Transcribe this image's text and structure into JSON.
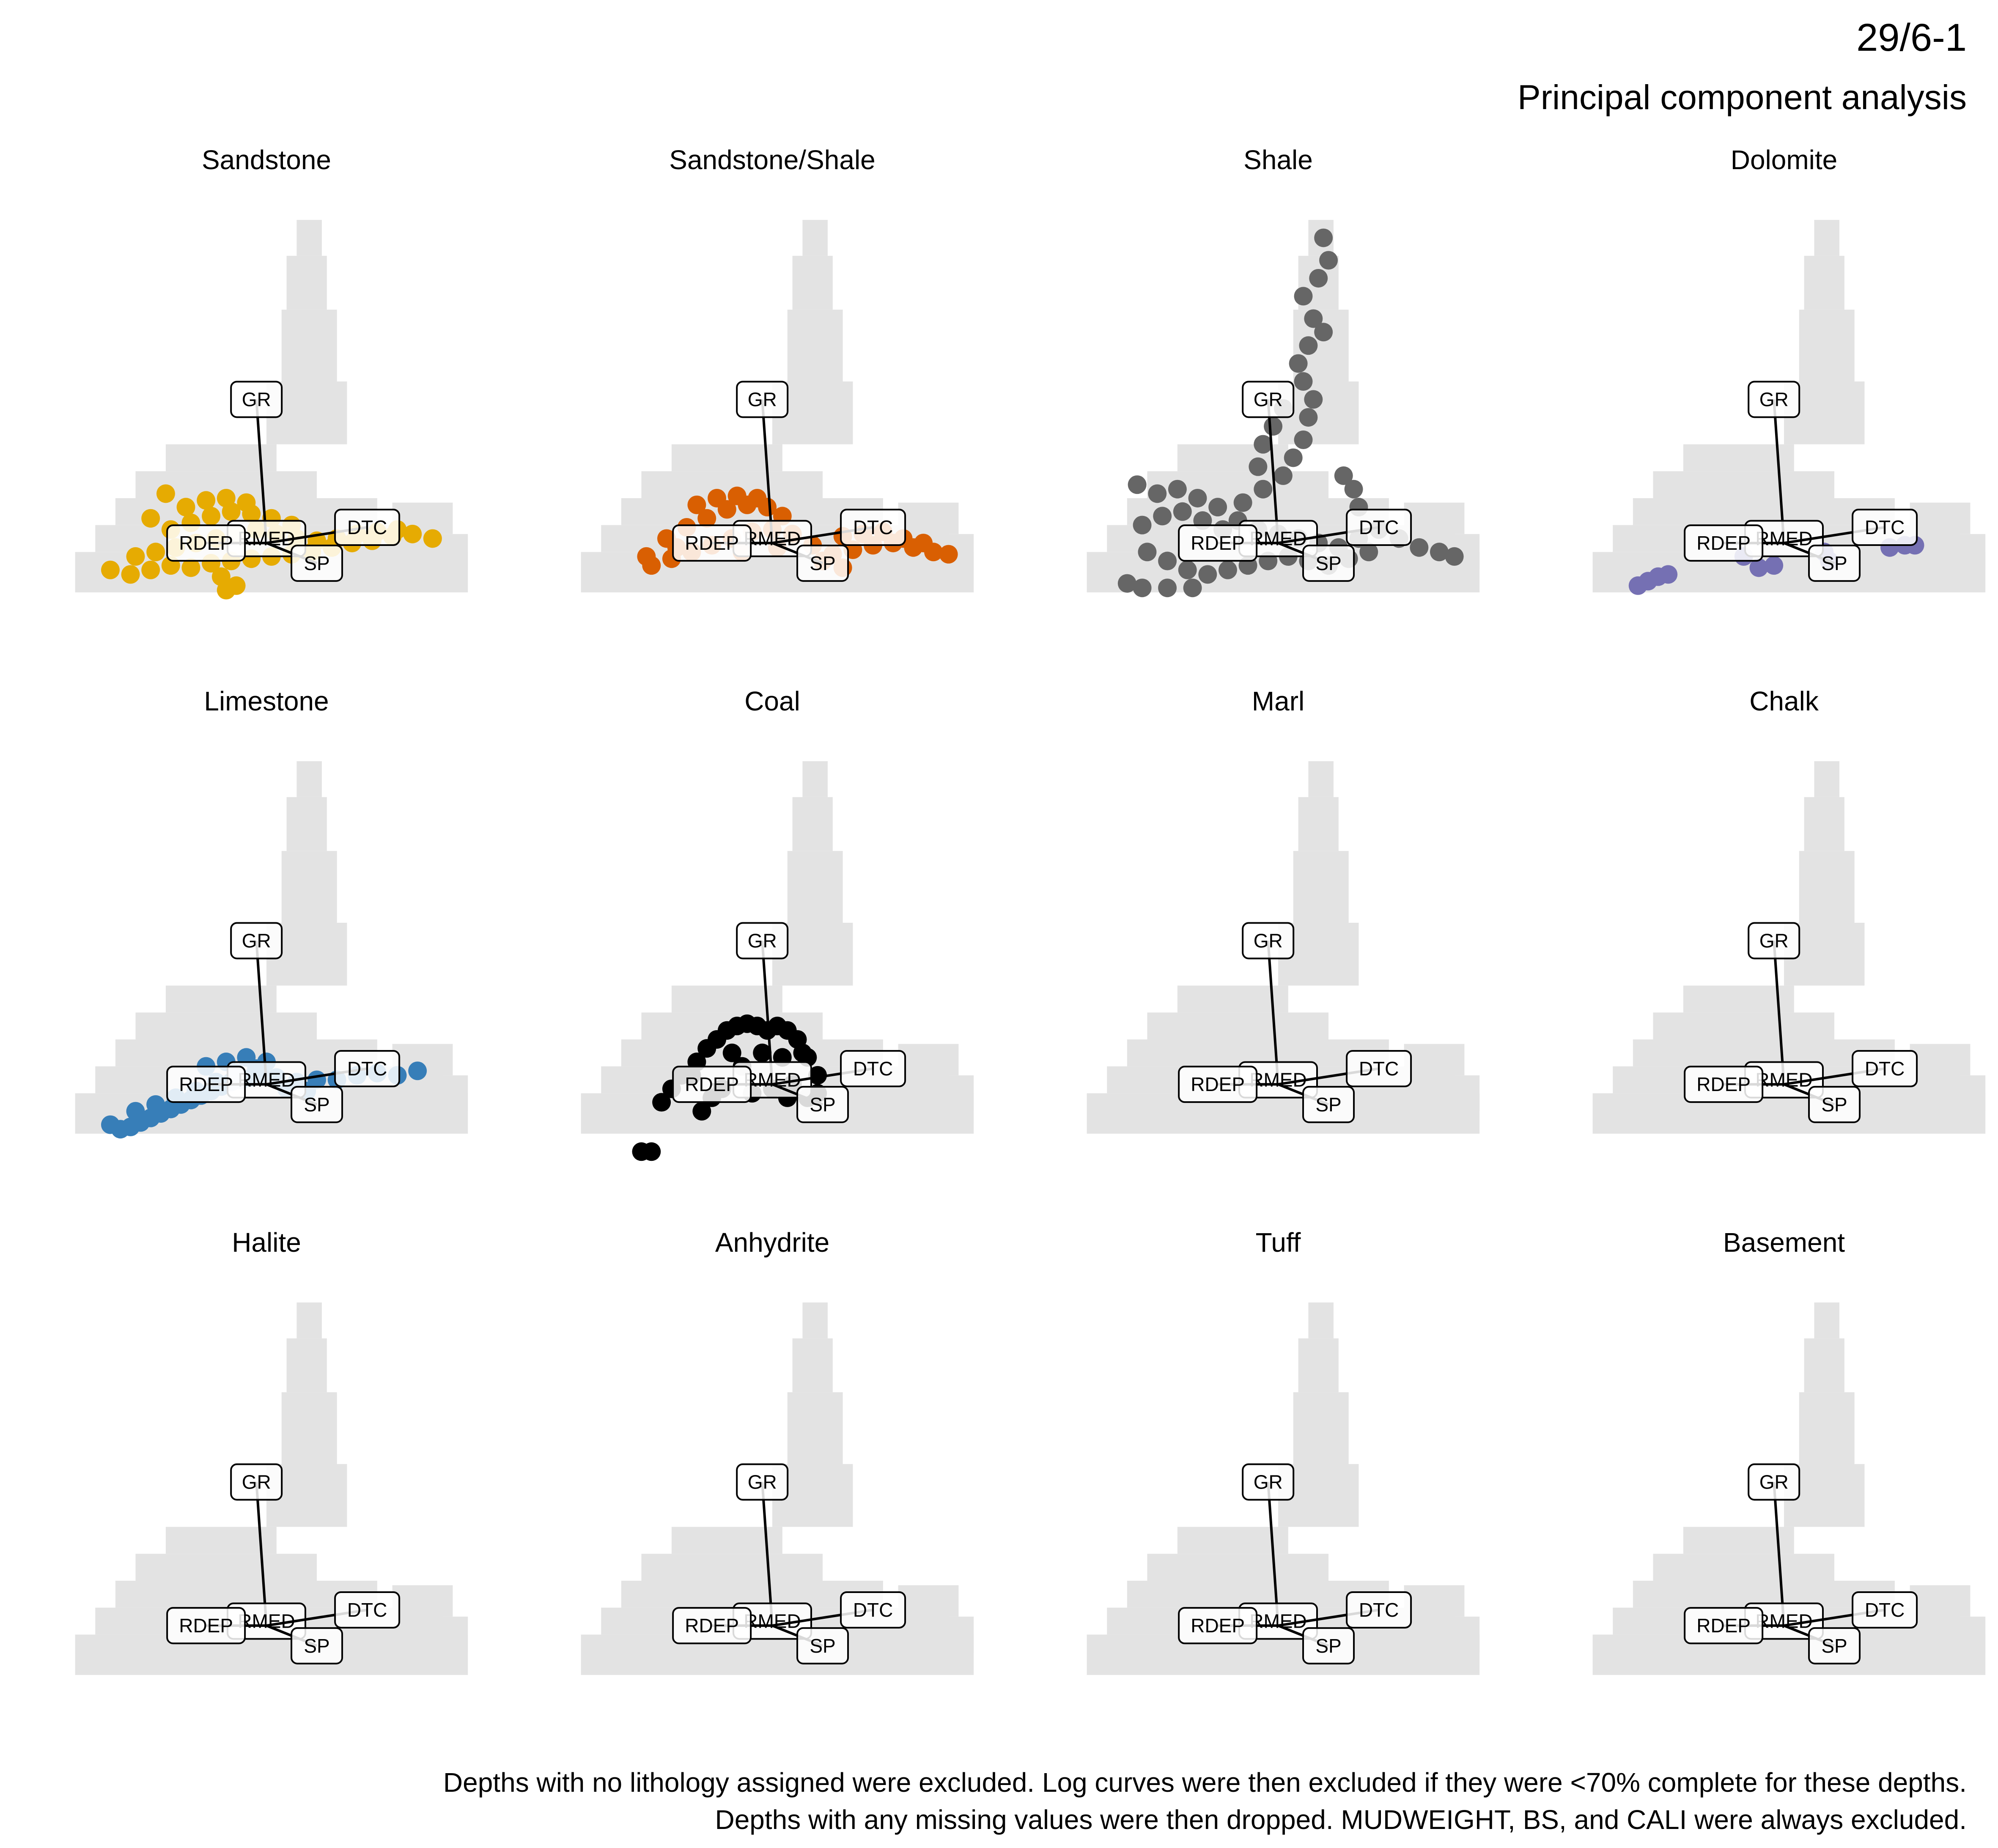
{
  "header": {
    "well_id": "29/6-1",
    "subtitle": "Principal component analysis"
  },
  "footer": {
    "line1": "Depths with no lithology assigned were excluded. Log curves were then excluded if they were <70% complete for these depths.",
    "line2": "Depths with any missing values were then dropped. MUDWEIGHT, BS, and CALI were always excluded."
  },
  "colors": {
    "background_cloud": "#e3e3e3",
    "arrow": "#000000",
    "label_border": "#000000",
    "label_fill": "#ffffff"
  },
  "chart_data": {
    "type": "scatter",
    "layout": "facet grid 3x4 (one panel per lithology)",
    "xlabel": "",
    "ylabel": "",
    "xlim": [
      -4.2,
      4.2
    ],
    "ylim": [
      -2.6,
      7.2
    ],
    "grid": false,
    "axes_visible": false,
    "background": "all samples shown as light grey density cloud in every panel",
    "loadings": [
      {
        "name": "GR",
        "x": -0.2,
        "y": 3.2
      },
      {
        "name": "RMED",
        "x": 0.0,
        "y": 0.1
      },
      {
        "name": "DTC",
        "x": 2.0,
        "y": 0.35
      },
      {
        "name": "RDEP",
        "x": -1.2,
        "y": 0.0
      },
      {
        "name": "SP",
        "x": 1.0,
        "y": -0.45
      }
    ],
    "panels": [
      {
        "name": "Sandstone",
        "color": "#e6ab02",
        "points": [
          [
            -3.1,
            -0.6
          ],
          [
            -2.7,
            -0.7
          ],
          [
            -2.3,
            -0.6
          ],
          [
            -1.9,
            -0.5
          ],
          [
            -1.5,
            -0.55
          ],
          [
            -1.1,
            -0.45
          ],
          [
            -0.7,
            -0.4
          ],
          [
            -0.3,
            -0.35
          ],
          [
            0.1,
            -0.3
          ],
          [
            0.5,
            -0.25
          ],
          [
            0.9,
            -0.2
          ],
          [
            1.3,
            -0.1
          ],
          [
            1.7,
            0.0
          ],
          [
            2.1,
            0.05
          ],
          [
            2.5,
            0.15
          ],
          [
            2.9,
            0.2
          ],
          [
            3.3,
            0.1
          ],
          [
            -2.6,
            -0.3
          ],
          [
            -2.2,
            -0.2
          ],
          [
            -1.8,
            -0.1
          ],
          [
            -1.4,
            0.0
          ],
          [
            -1.0,
            0.1
          ],
          [
            -0.6,
            0.2
          ],
          [
            -0.2,
            0.3
          ],
          [
            0.2,
            0.2
          ],
          [
            0.6,
            0.1
          ],
          [
            1.0,
            0.05
          ],
          [
            1.4,
            0.1
          ],
          [
            1.8,
            0.2
          ],
          [
            2.2,
            0.25
          ],
          [
            2.6,
            0.3
          ],
          [
            -1.9,
            0.3
          ],
          [
            -1.5,
            0.45
          ],
          [
            -1.1,
            0.6
          ],
          [
            -0.7,
            0.7
          ],
          [
            -0.3,
            0.65
          ],
          [
            0.1,
            0.55
          ],
          [
            0.5,
            0.4
          ],
          [
            -1.6,
            0.8
          ],
          [
            -1.2,
            0.95
          ],
          [
            -0.8,
            1.0
          ],
          [
            -0.4,
            0.9
          ],
          [
            -2.0,
            1.1
          ],
          [
            -2.3,
            0.55
          ],
          [
            -0.9,
            -0.75
          ],
          [
            -0.8,
            -1.05
          ],
          [
            -0.6,
            -0.95
          ]
        ]
      },
      {
        "name": "Sandstone/Shale",
        "color": "#d95f02",
        "points": [
          [
            -2.4,
            -0.5
          ],
          [
            -2.0,
            -0.35
          ],
          [
            -1.6,
            -0.2
          ],
          [
            -1.2,
            -0.05
          ],
          [
            -0.8,
            0.1
          ],
          [
            -0.4,
            0.25
          ],
          [
            0.0,
            0.3
          ],
          [
            0.4,
            0.2
          ],
          [
            0.8,
            -0.05
          ],
          [
            1.2,
            -0.25
          ],
          [
            1.6,
            -0.15
          ],
          [
            2.0,
            -0.05
          ],
          [
            2.4,
            0.0
          ],
          [
            2.8,
            -0.1
          ],
          [
            3.2,
            -0.2
          ],
          [
            3.5,
            -0.25
          ],
          [
            -2.1,
            0.1
          ],
          [
            -1.7,
            0.35
          ],
          [
            -1.3,
            0.55
          ],
          [
            -0.9,
            0.75
          ],
          [
            -0.5,
            0.85
          ],
          [
            -0.1,
            0.8
          ],
          [
            0.2,
            0.6
          ],
          [
            -1.5,
            0.85
          ],
          [
            -1.1,
            1.0
          ],
          [
            -0.7,
            1.05
          ],
          [
            -0.3,
            1.0
          ],
          [
            1.4,
            0.15
          ],
          [
            1.8,
            0.2
          ],
          [
            2.2,
            0.25
          ],
          [
            2.6,
            0.1
          ],
          [
            3.0,
            0.0
          ],
          [
            1.0,
            -0.4
          ],
          [
            1.4,
            -0.55
          ],
          [
            -1.9,
            -0.1
          ],
          [
            -2.5,
            -0.3
          ],
          [
            -0.6,
            -0.2
          ],
          [
            0.1,
            -0.1
          ]
        ]
      },
      {
        "name": "Shale",
        "color": "#666666",
        "points": [
          [
            -2.8,
            1.3
          ],
          [
            -2.4,
            1.1
          ],
          [
            -2.0,
            1.2
          ],
          [
            -1.6,
            1.0
          ],
          [
            -1.2,
            0.8
          ],
          [
            -0.8,
            0.5
          ],
          [
            -0.4,
            0.3
          ],
          [
            0.0,
            0.2
          ],
          [
            0.4,
            0.1
          ],
          [
            0.8,
            0.0
          ],
          [
            1.2,
            -0.1
          ],
          [
            1.6,
            0.1
          ],
          [
            2.0,
            0.3
          ],
          [
            2.4,
            0.1
          ],
          [
            2.8,
            -0.1
          ],
          [
            3.2,
            -0.2
          ],
          [
            3.5,
            -0.3
          ],
          [
            -2.6,
            -0.2
          ],
          [
            -2.2,
            -0.4
          ],
          [
            -1.8,
            -0.6
          ],
          [
            -1.4,
            -0.7
          ],
          [
            -1.0,
            -0.6
          ],
          [
            -0.6,
            -0.5
          ],
          [
            -0.2,
            -0.4
          ],
          [
            0.2,
            -0.3
          ],
          [
            0.6,
            -0.4
          ],
          [
            1.0,
            -0.5
          ],
          [
            1.4,
            -0.35
          ],
          [
            1.8,
            -0.2
          ],
          [
            -2.7,
            0.4
          ],
          [
            -2.3,
            0.6
          ],
          [
            -1.9,
            0.7
          ],
          [
            -1.5,
            0.5
          ],
          [
            -1.1,
            0.3
          ],
          [
            -0.7,
            0.9
          ],
          [
            -0.3,
            1.2
          ],
          [
            0.1,
            1.5
          ],
          [
            0.3,
            1.9
          ],
          [
            0.5,
            2.3
          ],
          [
            0.6,
            2.8
          ],
          [
            0.7,
            3.2
          ],
          [
            0.5,
            3.6
          ],
          [
            0.4,
            4.0
          ],
          [
            0.6,
            4.4
          ],
          [
            0.9,
            4.7
          ],
          [
            0.7,
            5.0
          ],
          [
            0.5,
            5.5
          ],
          [
            0.8,
            5.9
          ],
          [
            1.0,
            6.3
          ],
          [
            0.9,
            6.8
          ],
          [
            -0.3,
            2.2
          ],
          [
            -0.1,
            2.6
          ],
          [
            0.1,
            3.0
          ],
          [
            -0.4,
            1.7
          ],
          [
            1.5,
            1.2
          ],
          [
            1.3,
            1.5
          ],
          [
            1.6,
            0.8
          ],
          [
            -3.0,
            -0.9
          ],
          [
            -2.7,
            -1.0
          ],
          [
            -2.2,
            -1.0
          ],
          [
            -1.7,
            -1.0
          ]
        ]
      },
      {
        "name": "Dolomite",
        "color": "#7570b3",
        "points": [
          [
            -2.9,
            -0.95
          ],
          [
            -2.7,
            -0.85
          ],
          [
            -2.5,
            -0.75
          ],
          [
            -2.3,
            -0.7
          ],
          [
            -0.8,
            -0.3
          ],
          [
            -0.5,
            -0.55
          ],
          [
            -0.2,
            -0.5
          ],
          [
            0.8,
            -0.2
          ],
          [
            0.9,
            -0.4
          ],
          [
            2.1,
            -0.1
          ],
          [
            2.4,
            -0.05
          ],
          [
            2.6,
            -0.05
          ]
        ]
      },
      {
        "name": "Limestone",
        "color": "#377eb8",
        "points": [
          [
            -3.1,
            -0.9
          ],
          [
            -2.9,
            -1.0
          ],
          [
            -2.7,
            -0.95
          ],
          [
            -2.5,
            -0.85
          ],
          [
            -2.3,
            -0.75
          ],
          [
            -2.1,
            -0.65
          ],
          [
            -1.9,
            -0.55
          ],
          [
            -1.7,
            -0.45
          ],
          [
            -1.5,
            -0.35
          ],
          [
            -1.3,
            -0.25
          ],
          [
            -1.1,
            -0.15
          ],
          [
            -0.9,
            -0.05
          ],
          [
            -0.7,
            0.05
          ],
          [
            -0.5,
            0.1
          ],
          [
            -0.3,
            0.15
          ],
          [
            -0.1,
            0.2
          ],
          [
            -2.6,
            -0.6
          ],
          [
            -2.2,
            -0.45
          ],
          [
            -1.8,
            -0.3
          ],
          [
            -1.4,
            -0.15
          ],
          [
            -1.0,
            0.05
          ],
          [
            -0.6,
            0.25
          ],
          [
            -0.2,
            0.35
          ],
          [
            0.2,
            0.15
          ],
          [
            0.6,
            0.05
          ],
          [
            1.0,
            0.1
          ],
          [
            1.4,
            0.1
          ],
          [
            1.8,
            0.2
          ],
          [
            2.2,
            0.25
          ],
          [
            2.6,
            0.2
          ],
          [
            3.0,
            0.3
          ],
          [
            -0.8,
            0.5
          ],
          [
            -1.2,
            0.4
          ],
          [
            -0.4,
            0.6
          ],
          [
            0.0,
            0.5
          ],
          [
            0.4,
            -0.1
          ],
          [
            0.8,
            -0.15
          ]
        ]
      },
      {
        "name": "Coal",
        "color": "#000000",
        "points": [
          [
            -2.6,
            -1.5
          ],
          [
            -2.4,
            -1.5
          ],
          [
            -2.2,
            -0.4
          ],
          [
            -2.0,
            -0.1
          ],
          [
            -1.8,
            0.2
          ],
          [
            -1.5,
            0.5
          ],
          [
            -1.3,
            0.8
          ],
          [
            -1.1,
            1.0
          ],
          [
            -0.9,
            1.2
          ],
          [
            -0.7,
            1.3
          ],
          [
            -0.5,
            1.35
          ],
          [
            -0.3,
            1.3
          ],
          [
            -0.1,
            1.2
          ],
          [
            0.1,
            1.3
          ],
          [
            0.3,
            1.2
          ],
          [
            0.5,
            1.0
          ],
          [
            0.7,
            0.6
          ],
          [
            0.9,
            0.2
          ],
          [
            0.9,
            -0.2
          ],
          [
            0.7,
            -0.3
          ],
          [
            -1.6,
            0.2
          ],
          [
            -1.2,
            -0.3
          ],
          [
            -1.0,
            -0.1
          ],
          [
            -0.6,
            0.4
          ],
          [
            -0.2,
            0.7
          ],
          [
            0.2,
            0.6
          ],
          [
            0.4,
            0.0
          ],
          [
            0.0,
            -0.1
          ],
          [
            -0.4,
            -0.2
          ],
          [
            -0.8,
            0.7
          ],
          [
            0.6,
            0.7
          ],
          [
            0.3,
            -0.3
          ],
          [
            -1.4,
            -0.6
          ]
        ]
      },
      {
        "name": "Marl",
        "color": "#666666",
        "points": []
      },
      {
        "name": "Chalk",
        "color": "#666666",
        "points": []
      },
      {
        "name": "Halite",
        "color": "#666666",
        "points": []
      },
      {
        "name": "Anhydrite",
        "color": "#666666",
        "points": []
      },
      {
        "name": "Tuff",
        "color": "#666666",
        "points": []
      },
      {
        "name": "Basement",
        "color": "#666666",
        "points": []
      }
    ]
  }
}
